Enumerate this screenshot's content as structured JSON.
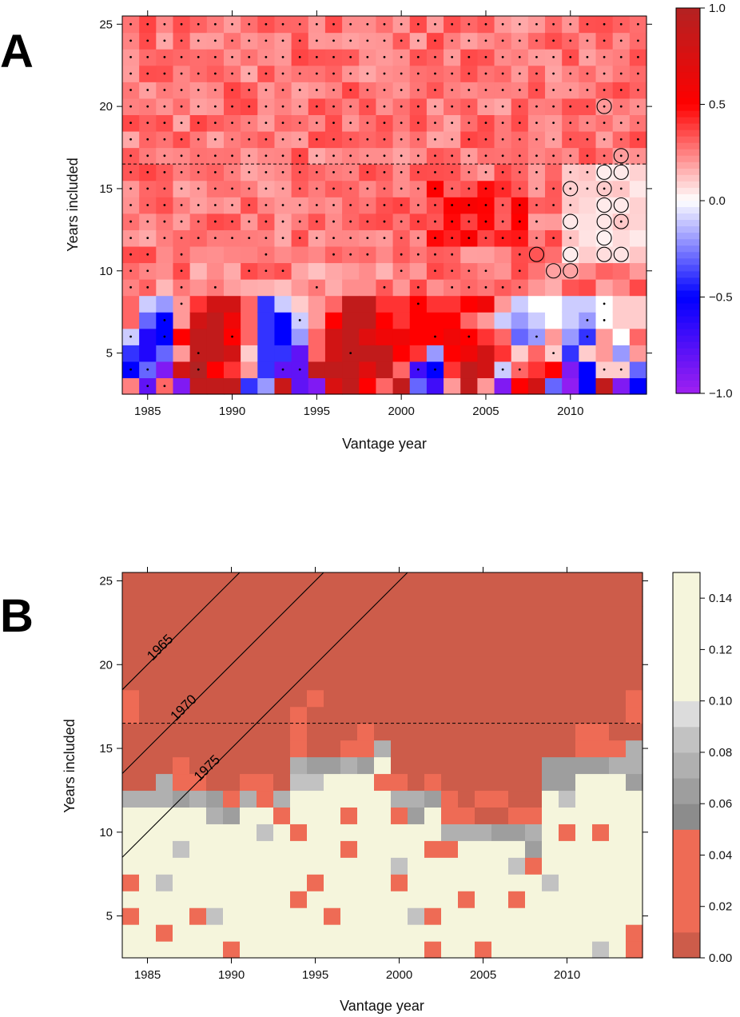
{
  "panels": [
    {
      "letter": "A"
    },
    {
      "letter": "B"
    }
  ],
  "chart_data": [
    {
      "type": "heatmap",
      "panel": "A",
      "xlabel": "Vantage year",
      "ylabel": "Years included",
      "x_range": [
        1984,
        2014
      ],
      "y_range": [
        3,
        25
      ],
      "x_ticks": [
        "1985",
        "1990",
        "1995",
        "2000",
        "2005",
        "2010"
      ],
      "y_ticks": [
        "5",
        "10",
        "15",
        "20",
        "25"
      ],
      "colorbar": {
        "range": [
          -1.0,
          1.0
        ],
        "tick_labels": [
          "1.0",
          "0.5",
          "0.0",
          "−0.5",
          "−1.0"
        ],
        "tick_values": [
          1.0,
          0.5,
          0.0,
          -0.5,
          -1.0
        ],
        "colors": [
          "#a020f0",
          "#0000ff",
          "#ffffff",
          "#ff0000",
          "#b22222"
        ]
      },
      "dashed_line_y": 16.5,
      "cell_values_approx": {
        "rows_17_to_25": 0.25,
        "rows_11_to_16": 0.25,
        "bottom_rows_3_to_8": "mixed, from about -1.0 to 1.0"
      },
      "open_circles": [
        {
          "x": 2012,
          "y": 20
        },
        {
          "x": 2013,
          "y": 17
        },
        {
          "x": 2012,
          "y": 16
        },
        {
          "x": 2013,
          "y": 16
        },
        {
          "x": 2010,
          "y": 15
        },
        {
          "x": 2012,
          "y": 15
        },
        {
          "x": 2012,
          "y": 14
        },
        {
          "x": 2013,
          "y": 14
        },
        {
          "x": 2010,
          "y": 13
        },
        {
          "x": 2012,
          "y": 13
        },
        {
          "x": 2013,
          "y": 13
        },
        {
          "x": 2012,
          "y": 12
        },
        {
          "x": 2008,
          "y": 11
        },
        {
          "x": 2010,
          "y": 11
        },
        {
          "x": 2012,
          "y": 11
        },
        {
          "x": 2013,
          "y": 11
        },
        {
          "x": 2009,
          "y": 10
        },
        {
          "x": 2010,
          "y": 10
        }
      ]
    },
    {
      "type": "heatmap",
      "panel": "B",
      "xlabel": "Vantage year",
      "ylabel": "Years included",
      "x_range": [
        1984,
        2014
      ],
      "y_range": [
        3,
        25
      ],
      "x_ticks": [
        "1985",
        "1990",
        "1995",
        "2000",
        "2005",
        "2010"
      ],
      "y_ticks": [
        "5",
        "10",
        "15",
        "20",
        "25"
      ],
      "colorbar": {
        "range": [
          0.0,
          0.15
        ],
        "tick_labels": [
          "0.14",
          "0.12",
          "0.10",
          "0.08",
          "0.06",
          "0.04",
          "0.02",
          "0.00"
        ],
        "tick_values": [
          0.14,
          0.12,
          0.1,
          0.08,
          0.06,
          0.04,
          0.02,
          0.0
        ],
        "bands": [
          {
            "from": 0.0,
            "to": 0.01,
            "color": "#cd5c4a"
          },
          {
            "from": 0.01,
            "to": 0.05,
            "color": "#ee6b55"
          },
          {
            "from": 0.05,
            "to": 0.06,
            "color": "#8c8c8c"
          },
          {
            "from": 0.06,
            "to": 0.07,
            "color": "#9e9e9e"
          },
          {
            "from": 0.07,
            "to": 0.08,
            "color": "#b0b0b0"
          },
          {
            "from": 0.08,
            "to": 0.09,
            "color": "#c2c2c2"
          },
          {
            "from": 0.09,
            "to": 0.1,
            "color": "#dcdcdc"
          },
          {
            "from": 0.1,
            "to": 0.15,
            "color": "#f5f5dc"
          }
        ]
      },
      "dashed_line_y": 16.5,
      "cohort_lines": [
        "1965",
        "1970",
        "1975"
      ]
    }
  ]
}
